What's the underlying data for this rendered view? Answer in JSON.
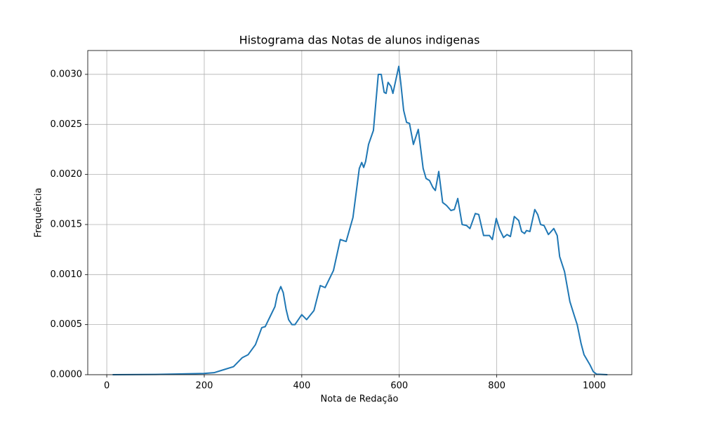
{
  "chart_data": {
    "type": "line",
    "title": "Histograma das Notas de alunos indigenas",
    "xlabel": "Nota de Redação",
    "ylabel": "Frequência",
    "color": "#1f77b4",
    "grid": true,
    "x": [
      12,
      100,
      199,
      220,
      240,
      260,
      278,
      290,
      305,
      318,
      325,
      335,
      345,
      350,
      357,
      362,
      368,
      373,
      380,
      386,
      400,
      410,
      425,
      438,
      448,
      465,
      479,
      491,
      505,
      518,
      523,
      527,
      531,
      537,
      547,
      557,
      563,
      569,
      573,
      577,
      583,
      587,
      599,
      603,
      609,
      615,
      621,
      629,
      639,
      649,
      655,
      662,
      669,
      674,
      681,
      689,
      697,
      706,
      713,
      720,
      729,
      738,
      745,
      756,
      763,
      773,
      785,
      791,
      799,
      806,
      814,
      821,
      828,
      836,
      845,
      851,
      857,
      861,
      868,
      878,
      884,
      890,
      897,
      906,
      917,
      924,
      929,
      939,
      950,
      959,
      965,
      973,
      979,
      991,
      998,
      1005,
      1027
    ],
    "values": [
      0,
      3e-06,
      1.2e-05,
      2e-05,
      5e-05,
      8e-05,
      0.00017,
      0.0002,
      0.0003,
      0.00047,
      0.00048,
      0.00058,
      0.00068,
      0.0008,
      0.00088,
      0.00082,
      0.00065,
      0.00055,
      0.0005,
      0.0005,
      0.0006,
      0.00055,
      0.00064,
      0.00089,
      0.00087,
      0.00104,
      0.00135,
      0.00133,
      0.00157,
      0.00206,
      0.00212,
      0.00207,
      0.00213,
      0.0023,
      0.00244,
      0.003,
      0.003,
      0.00282,
      0.00281,
      0.00292,
      0.00288,
      0.00281,
      0.00308,
      0.00292,
      0.00264,
      0.00252,
      0.00251,
      0.0023,
      0.00245,
      0.00206,
      0.00196,
      0.00194,
      0.00187,
      0.00184,
      0.00203,
      0.00172,
      0.00169,
      0.00164,
      0.00165,
      0.00176,
      0.0015,
      0.00149,
      0.00146,
      0.00161,
      0.0016,
      0.00139,
      0.00139,
      0.00135,
      0.00156,
      0.00145,
      0.00137,
      0.0014,
      0.00138,
      0.00158,
      0.00154,
      0.00143,
      0.00141,
      0.00144,
      0.00143,
      0.00165,
      0.0016,
      0.0015,
      0.00149,
      0.0014,
      0.00146,
      0.00139,
      0.00118,
      0.00103,
      0.00073,
      0.00059,
      0.0005,
      0.00031,
      0.0002,
      0.0001,
      3e-05,
      5e-06,
      0
    ],
    "xlim": [
      -39,
      1077
    ],
    "ylim": [
      0,
      0.003238
    ],
    "xticks": [
      0,
      200,
      400,
      600,
      800,
      1000
    ],
    "yticks": [
      {
        "value": 0,
        "label": "0.0000"
      },
      {
        "value": 0.0005,
        "label": "0.0005"
      },
      {
        "value": 0.001,
        "label": "0.0010"
      },
      {
        "value": 0.0015,
        "label": "0.0015"
      },
      {
        "value": 0.002,
        "label": "0.0020"
      },
      {
        "value": 0.0025,
        "label": "0.0025"
      },
      {
        "value": 0.003,
        "label": "0.0030"
      }
    ]
  }
}
